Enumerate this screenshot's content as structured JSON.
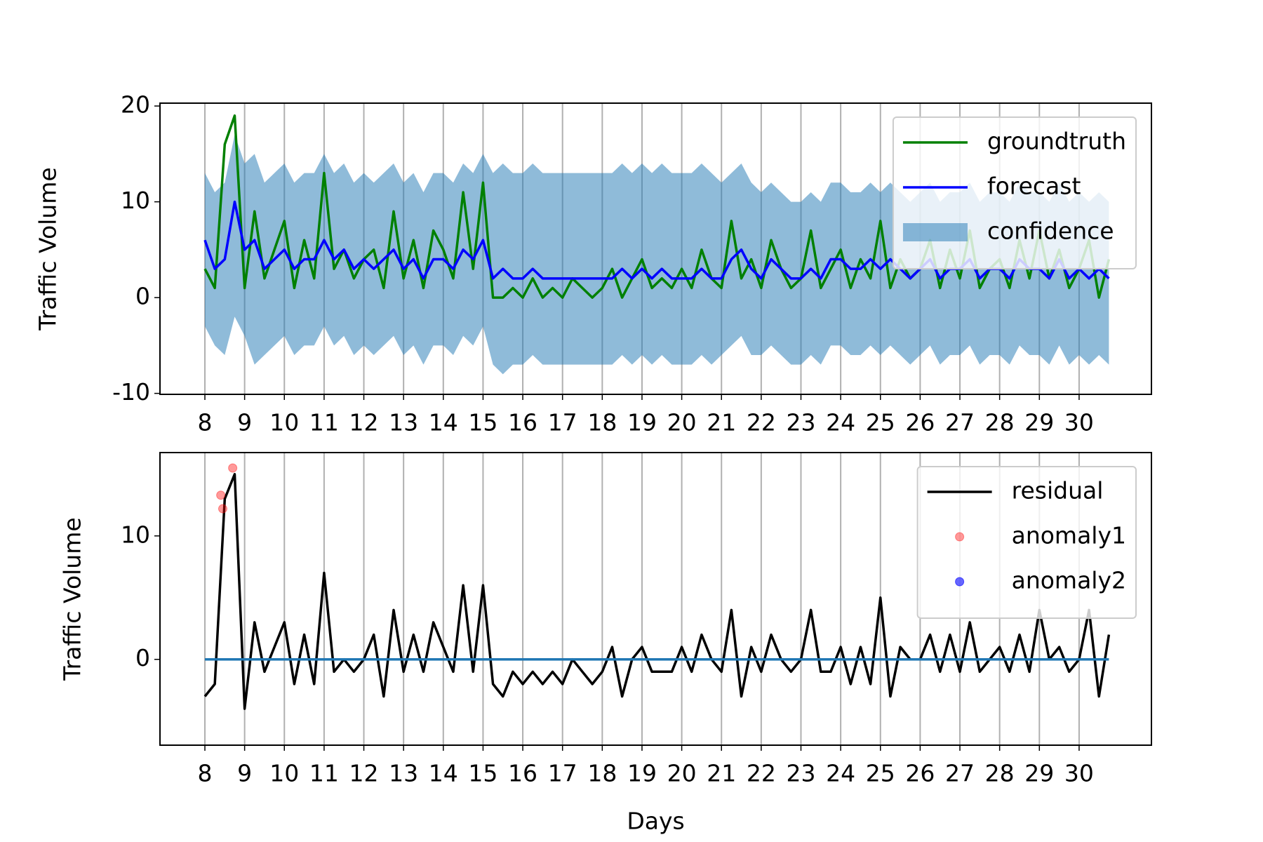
{
  "chart_data": [
    {
      "type": "line",
      "ylabel": "Traffic Volume",
      "x": [
        8,
        8.25,
        8.5,
        8.75,
        9,
        9.25,
        9.5,
        9.75,
        10,
        10.25,
        10.5,
        10.75,
        11,
        11.25,
        11.5,
        11.75,
        12,
        12.25,
        12.5,
        12.75,
        13,
        13.25,
        13.5,
        13.75,
        14,
        14.25,
        14.5,
        14.75,
        15,
        15.25,
        15.5,
        15.75,
        16,
        16.25,
        16.5,
        16.75,
        17,
        17.25,
        17.5,
        17.75,
        18,
        18.25,
        18.5,
        18.75,
        19,
        19.25,
        19.5,
        19.75,
        20,
        20.25,
        20.5,
        20.75,
        21,
        21.25,
        21.5,
        21.75,
        22,
        22.25,
        22.5,
        22.75,
        23,
        23.25,
        23.5,
        23.75,
        24,
        24.25,
        24.5,
        24.75,
        25,
        25.25,
        25.5,
        25.75,
        26,
        26.25,
        26.5,
        26.75,
        27,
        27.25,
        27.5,
        27.75,
        28,
        28.25,
        28.5,
        28.75,
        29,
        29.25,
        29.5,
        29.75,
        30,
        30.25,
        30.5,
        30.75
      ],
      "xlim": [
        6.87,
        31.82
      ],
      "xticks": [
        8,
        9,
        10,
        11,
        12,
        13,
        14,
        15,
        16,
        17,
        18,
        19,
        20,
        21,
        22,
        23,
        24,
        25,
        26,
        27,
        28,
        29,
        30
      ],
      "ylim": [
        -10.1,
        20.3
      ],
      "yticks": [
        -10,
        0,
        10,
        20
      ],
      "grid": "x",
      "legend": "upper right",
      "series": [
        {
          "name": "groundtruth",
          "type": "line",
          "color": "#008000",
          "values": [
            3,
            1,
            16,
            19,
            1,
            9,
            2,
            5,
            8,
            1,
            6,
            2,
            13,
            3,
            5,
            2,
            4,
            5,
            1,
            9,
            2,
            6,
            1,
            7,
            5,
            2,
            11,
            3,
            12,
            0,
            0,
            1,
            0,
            2,
            0,
            1,
            0,
            2,
            1,
            0,
            1,
            3,
            0,
            2,
            4,
            1,
            2,
            1,
            3,
            1,
            5,
            2,
            1,
            8,
            2,
            4,
            1,
            6,
            3,
            1,
            2,
            7,
            1,
            3,
            5,
            1,
            4,
            2,
            8,
            1,
            4,
            2,
            3,
            6,
            1,
            5,
            2,
            7,
            1,
            3,
            4,
            1,
            6,
            2,
            7,
            2,
            5,
            1,
            3,
            6,
            0,
            4
          ]
        },
        {
          "name": "forecast",
          "type": "line",
          "color": "#0000ff",
          "values": [
            6,
            3,
            4,
            10,
            5,
            6,
            3,
            4,
            5,
            3,
            4,
            4,
            6,
            4,
            5,
            3,
            4,
            3,
            4,
            5,
            3,
            4,
            2,
            4,
            4,
            3,
            5,
            4,
            6,
            2,
            3,
            2,
            2,
            3,
            2,
            2,
            2,
            2,
            2,
            2,
            2,
            2,
            3,
            2,
            3,
            2,
            3,
            2,
            2,
            2,
            3,
            2,
            2,
            4,
            5,
            3,
            2,
            4,
            3,
            2,
            2,
            3,
            2,
            4,
            4,
            3,
            3,
            4,
            3,
            4,
            3,
            2,
            3,
            4,
            2,
            3,
            3,
            4,
            2,
            3,
            3,
            2,
            4,
            3,
            3,
            2,
            4,
            2,
            3,
            2,
            3,
            2
          ]
        },
        {
          "name": "confidence",
          "type": "band",
          "color": "#1f77b4",
          "opacity": 0.5,
          "upper": [
            13,
            11,
            12,
            17,
            14,
            15,
            12,
            13,
            14,
            12,
            13,
            13,
            15,
            13,
            14,
            12,
            13,
            12,
            13,
            14,
            12,
            13,
            11,
            13,
            13,
            12,
            14,
            13,
            15,
            13,
            14,
            13,
            13,
            14,
            13,
            13,
            13,
            13,
            13,
            13,
            13,
            13,
            14,
            13,
            14,
            13,
            14,
            13,
            13,
            13,
            14,
            13,
            12,
            13,
            14,
            12,
            11,
            12,
            11,
            10,
            10,
            11,
            10,
            12,
            12,
            11,
            11,
            12,
            11,
            12,
            11,
            10,
            11,
            12,
            10,
            11,
            11,
            12,
            10,
            11,
            11,
            10,
            12,
            11,
            11,
            10,
            12,
            10,
            11,
            10,
            11,
            10
          ],
          "lower": [
            -3,
            -5,
            -6,
            -2,
            -4,
            -7,
            -6,
            -5,
            -4,
            -6,
            -5,
            -5,
            -3,
            -5,
            -4,
            -6,
            -5,
            -6,
            -5,
            -4,
            -6,
            -5,
            -7,
            -5,
            -5,
            -6,
            -4,
            -5,
            -3,
            -7,
            -8,
            -7,
            -7,
            -6,
            -7,
            -7,
            -7,
            -7,
            -7,
            -7,
            -7,
            -7,
            -6,
            -7,
            -6,
            -7,
            -6,
            -7,
            -7,
            -7,
            -6,
            -7,
            -6,
            -5,
            -4,
            -6,
            -6,
            -5,
            -6,
            -7,
            -7,
            -6,
            -7,
            -5,
            -5,
            -6,
            -6,
            -5,
            -6,
            -5,
            -6,
            -7,
            -6,
            -5,
            -7,
            -6,
            -6,
            -5,
            -7,
            -6,
            -6,
            -7,
            -5,
            -6,
            -6,
            -7,
            -5,
            -7,
            -6,
            -7,
            -6,
            -7
          ]
        }
      ]
    },
    {
      "type": "line",
      "ylabel": "Traffic Volume",
      "xlabel": "Days",
      "x": [
        8,
        8.25,
        8.5,
        8.75,
        9,
        9.25,
        9.5,
        9.75,
        10,
        10.25,
        10.5,
        10.75,
        11,
        11.25,
        11.5,
        11.75,
        12,
        12.25,
        12.5,
        12.75,
        13,
        13.25,
        13.5,
        13.75,
        14,
        14.25,
        14.5,
        14.75,
        15,
        15.25,
        15.5,
        15.75,
        16,
        16.25,
        16.5,
        16.75,
        17,
        17.25,
        17.5,
        17.75,
        18,
        18.25,
        18.5,
        18.75,
        19,
        19.25,
        19.5,
        19.75,
        20,
        20.25,
        20.5,
        20.75,
        21,
        21.25,
        21.5,
        21.75,
        22,
        22.25,
        22.5,
        22.75,
        23,
        23.25,
        23.5,
        23.75,
        24,
        24.25,
        24.5,
        24.75,
        25,
        25.25,
        25.5,
        25.75,
        26,
        26.25,
        26.5,
        26.75,
        27,
        27.25,
        27.5,
        27.75,
        28,
        28.25,
        28.5,
        28.75,
        29,
        29.25,
        29.5,
        29.75,
        30,
        30.25,
        30.5,
        30.75
      ],
      "xlim": [
        6.87,
        31.82
      ],
      "xticks": [
        8,
        9,
        10,
        11,
        12,
        13,
        14,
        15,
        16,
        17,
        18,
        19,
        20,
        21,
        22,
        23,
        24,
        25,
        26,
        27,
        28,
        29,
        30
      ],
      "ylim": [
        -6.95,
        16.75
      ],
      "yticks": [
        0,
        10
      ],
      "grid": "x",
      "legend": "upper right",
      "series": [
        {
          "name": "residual",
          "type": "line",
          "color": "#000000",
          "values": [
            -3,
            -2,
            13,
            15,
            -4,
            3,
            -1,
            1,
            3,
            -2,
            2,
            -2,
            7,
            -1,
            0,
            -1,
            0,
            2,
            -3,
            4,
            -1,
            2,
            -1,
            3,
            1,
            -1,
            6,
            -1,
            6,
            -2,
            -3,
            -1,
            -2,
            -1,
            -2,
            -1,
            -2,
            0,
            -1,
            -2,
            -1,
            1,
            -3,
            0,
            1,
            -1,
            -1,
            -1,
            1,
            -1,
            2,
            0,
            -1,
            4,
            -3,
            1,
            -1,
            2,
            0,
            -1,
            0,
            4,
            -1,
            -1,
            1,
            -2,
            1,
            -2,
            5,
            -3,
            1,
            0,
            0,
            2,
            -1,
            2,
            -1,
            3,
            -1,
            0,
            1,
            -1,
            2,
            -1,
            4,
            0,
            1,
            -1,
            0,
            4,
            -3,
            2
          ]
        },
        {
          "name": "anomaly1",
          "type": "scatter",
          "color": "#ff0000",
          "opacity": 0.4,
          "x": [
            8.4,
            8.45,
            8.7
          ],
          "values": [
            13.3,
            12.2,
            15.5
          ]
        },
        {
          "name": "anomaly2",
          "type": "scatter",
          "color": "#0000ff",
          "opacity": 0.6,
          "x": [],
          "values": []
        },
        {
          "type": "hline",
          "color": "#1f77b4",
          "value": 0
        }
      ]
    }
  ]
}
